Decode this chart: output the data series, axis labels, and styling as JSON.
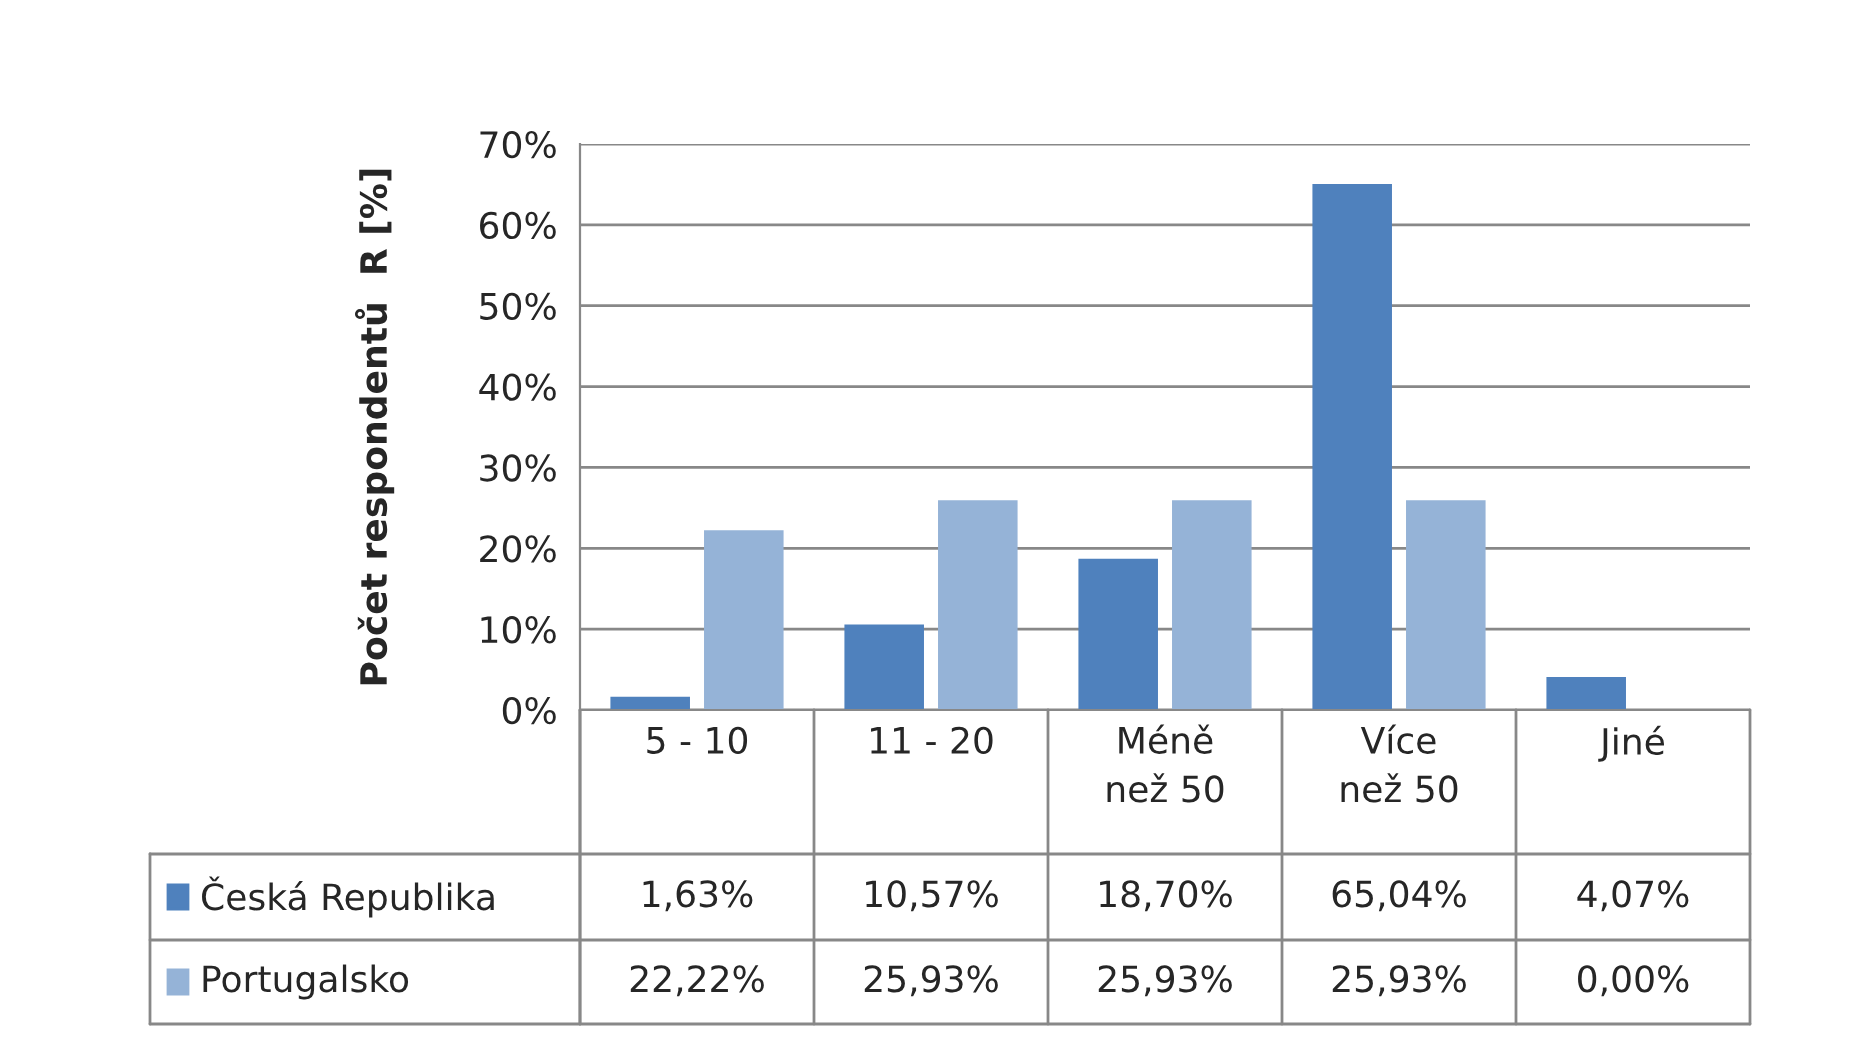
{
  "chart_data": {
    "type": "bar",
    "ylabel": "Počet respondentů  R [%]",
    "categories": [
      "5 - 10",
      "11 - 20",
      "Méně\nnež 50",
      "Více\nnež 50",
      "Jiné"
    ],
    "series": [
      {
        "name": "Česká Republika",
        "color": "#4f81bd",
        "values": [
          1.63,
          10.57,
          18.7,
          65.04,
          4.07
        ],
        "value_labels": [
          "1,63%",
          "10,57%",
          "18,70%",
          "65,04%",
          "4,07%"
        ]
      },
      {
        "name": "Portugalsko",
        "color": "#95b3d7",
        "values": [
          22.22,
          25.93,
          25.93,
          25.93,
          0.0
        ],
        "value_labels": [
          "22,22%",
          "25,93%",
          "25,93%",
          "25,93%",
          "0,00%"
        ]
      }
    ],
    "ylim": [
      0,
      70
    ],
    "yticks": [
      {
        "value": 0,
        "label": "0%"
      },
      {
        "value": 10,
        "label": "10%"
      },
      {
        "value": 20,
        "label": "20%"
      },
      {
        "value": 30,
        "label": "30%"
      },
      {
        "value": 40,
        "label": "40%"
      },
      {
        "value": 50,
        "label": "50%"
      },
      {
        "value": 60,
        "label": "60%"
      },
      {
        "value": 70,
        "label": "70%"
      }
    ],
    "grid": "y",
    "legend": "bottom left"
  }
}
